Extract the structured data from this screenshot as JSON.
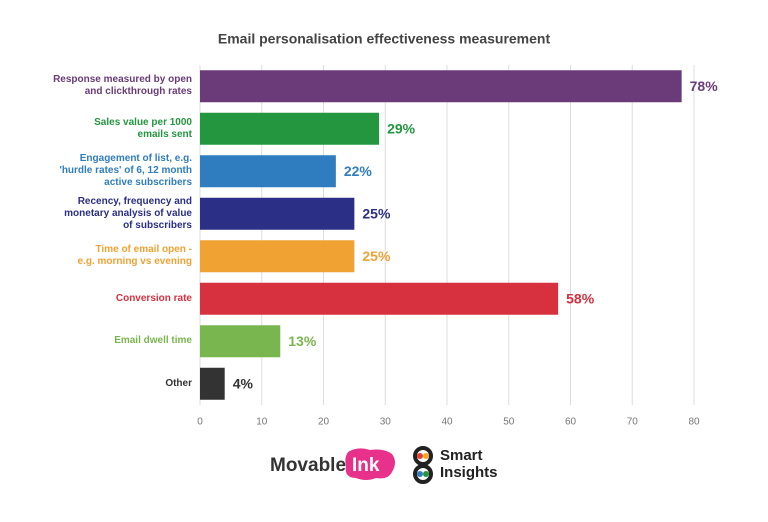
{
  "chart_data": {
    "type": "barh",
    "title": "Email personalisation effectiveness measurement",
    "categories": [
      "Response measured by open\nand clickthrough rates",
      "Sales value per 1000\nemails sent",
      "Engagement of list, e.g.\n'hurdle rates' of 6, 12 month\nactive subscribers",
      "Recency, frequency and\nmonetary analysis of value\nof subscribers",
      "Time of email open -\ne.g. morning vs evening",
      "Conversion rate",
      "Email dwell time",
      "Other"
    ],
    "values": [
      78,
      29,
      22,
      25,
      25,
      58,
      13,
      4
    ],
    "value_labels": [
      "78%",
      "29%",
      "22%",
      "25%",
      "25%",
      "58%",
      "13%",
      "4%"
    ],
    "colors": [
      "#6a3b78",
      "#23963f",
      "#2f7dbf",
      "#2b2f86",
      "#f0a233",
      "#d7303f",
      "#7ab650",
      "#333333"
    ],
    "xlim": [
      0,
      80
    ],
    "xticks": [
      0,
      10,
      20,
      30,
      40,
      50,
      60,
      70,
      80
    ],
    "grid": true
  },
  "footer": {
    "brand1": "Movable",
    "brand1_tag": "Ink",
    "brand2_line1": "Smart",
    "brand2_line2": "Insights"
  }
}
